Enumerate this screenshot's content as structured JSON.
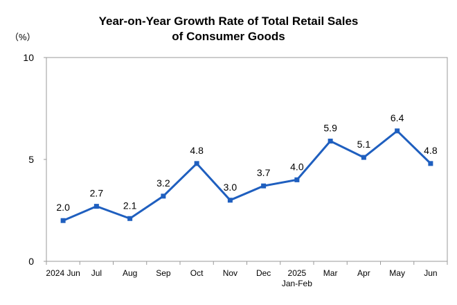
{
  "chart_data": {
    "type": "line",
    "title_lines": [
      "Year-on-Year Growth Rate of Total Retail Sales",
      "of Consumer Goods"
    ],
    "ylabel": "（%）",
    "xlabel": "",
    "ylim": [
      0,
      10
    ],
    "yticks": [
      0,
      5,
      10
    ],
    "categories": [
      [
        "2024 Jun"
      ],
      [
        "Jul"
      ],
      [
        "Aug"
      ],
      [
        "Sep"
      ],
      [
        "Oct"
      ],
      [
        "Nov"
      ],
      [
        "Dec"
      ],
      [
        "2025",
        "Jan-Feb"
      ],
      [
        "Mar"
      ],
      [
        "Apr"
      ],
      [
        "May"
      ],
      [
        "Jun"
      ]
    ],
    "series": [
      {
        "name": "Year-on-Year Growth Rate",
        "values": [
          2.0,
          2.7,
          2.1,
          3.2,
          4.8,
          3.0,
          3.7,
          4.0,
          5.9,
          5.1,
          6.4,
          4.8
        ],
        "labels": [
          "2.0",
          "2.7",
          "2.1",
          "3.2",
          "4.8",
          "3.0",
          "3.7",
          "4.0",
          "5.9",
          "5.1",
          "6.4",
          "4.8"
        ],
        "color": "#1f5fbf"
      }
    ],
    "grid": false,
    "legend": "none",
    "axis_color": "#999999"
  }
}
